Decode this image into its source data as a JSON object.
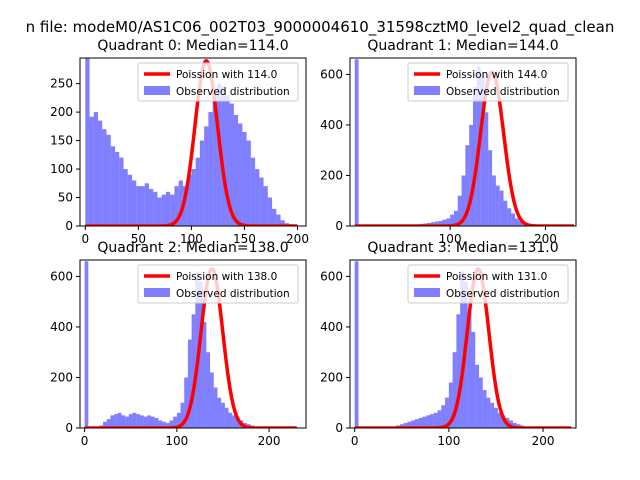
{
  "figure_title": "n file: modeM0/AS1C06_002T03_9000004610_31598cztM0_level2_quad_clean",
  "colors": {
    "poisson": "#ff0000",
    "observed": "#0000ff",
    "axes": "#000000"
  },
  "chart_data": [
    {
      "type": "bar+line",
      "title": "Quadrant 0: Median=114.0",
      "xlim": [
        -5,
        208
      ],
      "ylim": [
        0,
        295
      ],
      "xticks": [
        0,
        50,
        100,
        150,
        200
      ],
      "yticks": [
        0,
        50,
        100,
        150,
        200,
        250
      ],
      "legend": {
        "position": "top-right",
        "line_label": "Poission with 114.0",
        "bar_label": "Observed distribution"
      },
      "hist": {
        "start": 0,
        "width": 4,
        "values": [
          295,
          192,
          200,
          185,
          170,
          160,
          140,
          130,
          120,
          100,
          90,
          80,
          70,
          70,
          75,
          65,
          60,
          50,
          55,
          60,
          55,
          70,
          80,
          70,
          90,
          100,
          120,
          150,
          175,
          200,
          235,
          250,
          245,
          230,
          215,
          195,
          180,
          165,
          150,
          120,
          100,
          85,
          70,
          50,
          30,
          20,
          10,
          5,
          3,
          2
        ]
      },
      "poisson": {
        "mean": 114.0,
        "peak": 290,
        "x_range": [
          0,
          200
        ]
      }
    },
    {
      "type": "bar+line",
      "title": "Quadrant 1: Median=144.0",
      "xlim": [
        -5,
        232
      ],
      "ylim": [
        0,
        665
      ],
      "xticks": [
        100,
        200
      ],
      "yticks": [
        0,
        200,
        400,
        600
      ],
      "legend": {
        "position": "top-right",
        "line_label": "Poission with 144.0",
        "bar_label": "Observed distribution"
      },
      "hist": {
        "start": 0,
        "width": 4,
        "values": [
          660,
          0,
          0,
          0,
          0,
          0,
          0,
          0,
          0,
          0,
          0,
          0,
          0,
          2,
          3,
          5,
          6,
          8,
          10,
          12,
          15,
          18,
          20,
          25,
          30,
          45,
          60,
          120,
          200,
          320,
          400,
          550,
          630,
          600,
          450,
          300,
          200,
          160,
          140,
          100,
          70,
          50,
          30,
          20,
          12,
          8,
          5,
          3,
          2,
          1,
          0,
          0,
          0,
          0,
          0,
          0,
          0
        ]
      },
      "poisson": {
        "mean": 144.0,
        "peak": 610,
        "x_range": [
          0,
          230
        ]
      }
    },
    {
      "type": "bar+line",
      "title": "Quadrant 2: Median=138.0",
      "xlim": [
        -5,
        240
      ],
      "ylim": [
        0,
        665
      ],
      "xticks": [
        0,
        100,
        200
      ],
      "yticks": [
        0,
        200,
        400,
        600
      ],
      "legend": {
        "position": "top-right",
        "line_label": "Poission with 138.0",
        "bar_label": "Observed distribution"
      },
      "hist": {
        "start": 0,
        "width": 4,
        "values": [
          660,
          0,
          0,
          0,
          10,
          25,
          35,
          50,
          55,
          60,
          50,
          45,
          55,
          60,
          55,
          50,
          45,
          50,
          45,
          40,
          30,
          25,
          20,
          30,
          45,
          60,
          100,
          200,
          350,
          450,
          620,
          580,
          420,
          300,
          220,
          160,
          120,
          100,
          80,
          60,
          50,
          40,
          30,
          20,
          15,
          10,
          5,
          3,
          2,
          1,
          0,
          0,
          0,
          0,
          0,
          0,
          0,
          0,
          0
        ]
      },
      "poisson": {
        "mean": 138.0,
        "peak": 630,
        "x_range": [
          0,
          230
        ]
      }
    },
    {
      "type": "bar+line",
      "title": "Quadrant 3: Median=131.0",
      "xlim": [
        -5,
        235
      ],
      "ylim": [
        0,
        665
      ],
      "xticks": [
        0,
        100,
        200
      ],
      "yticks": [
        0,
        200,
        400,
        600
      ],
      "legend": {
        "position": "top-right",
        "line_label": "Poission with 131.0",
        "bar_label": "Observed distribution"
      },
      "hist": {
        "start": 0,
        "width": 4,
        "values": [
          660,
          0,
          0,
          0,
          0,
          0,
          0,
          0,
          0,
          0,
          5,
          10,
          15,
          20,
          25,
          30,
          35,
          40,
          45,
          50,
          55,
          60,
          70,
          90,
          120,
          180,
          300,
          450,
          620,
          580,
          460,
          380,
          250,
          200,
          150,
          120,
          100,
          80,
          60,
          50,
          40,
          30,
          20,
          15,
          10,
          5,
          3,
          2,
          1,
          0,
          0,
          0,
          0,
          0,
          0,
          0,
          0,
          0
        ]
      },
      "poisson": {
        "mean": 131.0,
        "peak": 630,
        "x_range": [
          0,
          230
        ]
      }
    }
  ]
}
